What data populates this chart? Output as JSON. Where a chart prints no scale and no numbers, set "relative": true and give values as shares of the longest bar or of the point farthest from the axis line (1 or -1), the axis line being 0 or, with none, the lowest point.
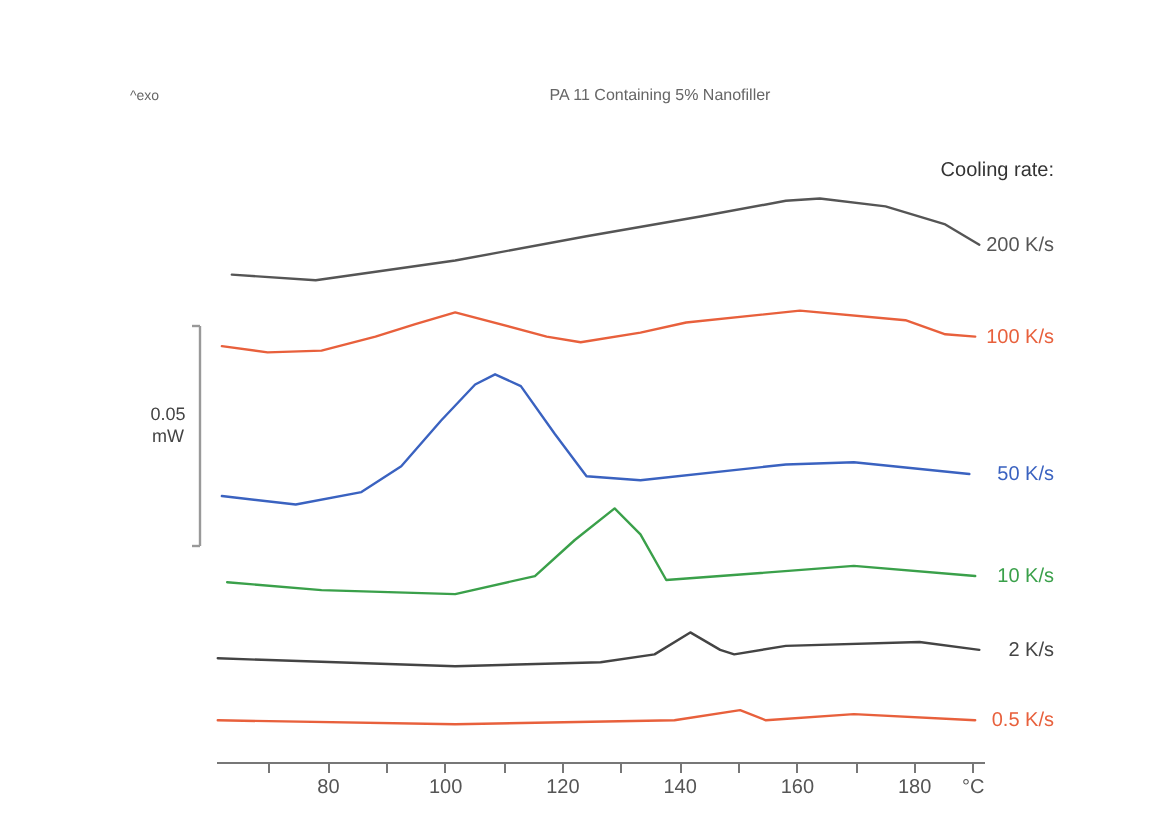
{
  "chart_data": {
    "type": "line",
    "title": "PA 11 Containing 5% Nanofiller",
    "xlabel": null,
    "legend_title": "Cooling rate:",
    "relative": true,
    "legend": false,
    "grid": false,
    "xlim": [
      61,
      192
    ],
    "xticks": [
      {
        "value": 70,
        "label": null
      },
      80,
      {
        "value": 90,
        "label": null
      },
      100,
      {
        "value": 110,
        "label": null
      },
      120,
      {
        "value": 130,
        "label": null
      },
      140,
      {
        "value": 150,
        "label": null
      },
      160,
      {
        "value": 170,
        "label": null
      },
      180,
      {
        "value": 190,
        "label": "°C"
      }
    ],
    "annotations": [
      "^exo",
      "0.05 mW"
    ],
    "series": [
      {
        "name": "200 K/s",
        "color": "#555555",
        "x": [
          63.7,
          78,
          101.8,
          124.2,
          143.6,
          158.2,
          164,
          175.2,
          185.4,
          191.2
        ],
        "values": [
          0.865,
          0.855,
          0.89,
          0.933,
          0.968,
          0.996,
          1.0,
          0.986,
          0.954,
          0.918
        ]
      },
      {
        "name": "100 K/s",
        "color": "#e8603c",
        "x": [
          62,
          69.8,
          79,
          88.2,
          95,
          101.8,
          117.4,
          123.2,
          133.4,
          141.2,
          160.6,
          178.6,
          185.4,
          190.5
        ],
        "values": [
          0.738,
          0.727,
          0.73,
          0.755,
          0.777,
          0.798,
          0.755,
          0.745,
          0.762,
          0.78,
          0.801,
          0.784,
          0.759,
          0.755
        ]
      },
      {
        "name": "50 K/s",
        "color": "#3a62c0",
        "x": [
          62,
          74.6,
          85.8,
          92.6,
          99.4,
          105.2,
          108.6,
          113,
          118.8,
          124.2,
          133.4,
          158.2,
          169.8,
          189.5
        ],
        "values": [
          0.472,
          0.457,
          0.479,
          0.525,
          0.606,
          0.67,
          0.688,
          0.667,
          0.582,
          0.507,
          0.5,
          0.528,
          0.532,
          0.511
        ]
      },
      {
        "name": "10 K/s",
        "color": "#3aa04a",
        "x": [
          62.9,
          79,
          101.8,
          115.4,
          122.2,
          129,
          133.4,
          137.8,
          147,
          169.8,
          190.5
        ],
        "values": [
          0.319,
          0.305,
          0.298,
          0.33,
          0.394,
          0.45,
          0.404,
          0.323,
          0.33,
          0.348,
          0.33
        ]
      },
      {
        "name": "2 K/s",
        "color": "#444444",
        "x": [
          61.3,
          101.8,
          126.6,
          135.8,
          141.9,
          147,
          149.4,
          158.2,
          181,
          191.2
        ],
        "values": [
          0.184,
          0.17,
          0.177,
          0.191,
          0.23,
          0.199,
          0.191,
          0.206,
          0.213,
          0.199
        ]
      },
      {
        "name": "0.5 K/s",
        "color": "#e8603c",
        "x": [
          61.3,
          101.8,
          139.2,
          150.4,
          154.8,
          169.8,
          190.5
        ],
        "values": [
          0.074,
          0.067,
          0.074,
          0.092,
          0.074,
          0.085,
          0.074
        ]
      }
    ]
  }
}
